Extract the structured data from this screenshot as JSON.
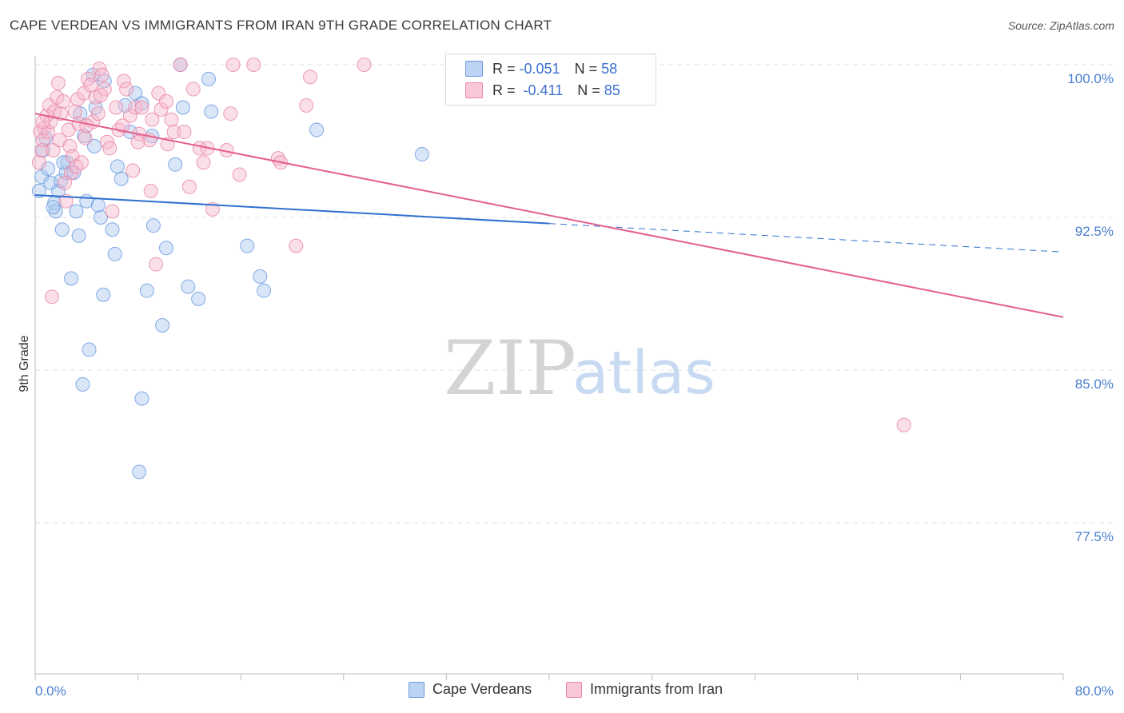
{
  "title": "CAPE VERDEAN VS IMMIGRANTS FROM IRAN 9TH GRADE CORRELATION CHART",
  "source": "Source: ZipAtlas.com",
  "watermark": {
    "zip": "ZIP",
    "atlas": "atlas"
  },
  "legend": {
    "blue": {
      "r_label": "R =",
      "r_value": "-0.051",
      "n_label": "N =",
      "n_value": "58"
    },
    "pink": {
      "r_label": "R =",
      "r_value": "-0.411",
      "n_label": "N =",
      "n_value": "85"
    }
  },
  "bottom_legend": {
    "blue": "Cape Verdeans",
    "pink": "Immigrants from Iran"
  },
  "colors": {
    "blue_fill": "#a9c7f0",
    "blue_stroke": "#6e9ce0",
    "blue_line": "#2f6fd0",
    "pink_fill": "#f6b8cc",
    "pink_stroke": "#e98aaa",
    "pink_line": "#e45f8d",
    "tick": "#4a7fcf"
  },
  "chart_data": {
    "type": "scatter",
    "title": "CAPE VERDEAN VS IMMIGRANTS FROM IRAN 9TH GRADE CORRELATION CHART",
    "xlabel": "",
    "ylabel": "9th Grade",
    "xlim": [
      0,
      80
    ],
    "ylim": [
      71,
      101.5
    ],
    "x_tick_labels": [
      "0.0%",
      "80.0%"
    ],
    "y_ticks": [
      77.5,
      85.0,
      92.5,
      100.0
    ],
    "y_tick_labels": [
      "77.5%",
      "85.0%",
      "92.5%",
      "100.0%"
    ],
    "series": [
      {
        "name": "Cape Verdeans",
        "trend": {
          "x0": 0,
          "y0": 93.6,
          "x1": 40,
          "y1": 92.2,
          "dash_to_x": 80,
          "dash_to_y": 90.8
        },
        "points": [
          [
            0.3,
            93.8
          ],
          [
            0.5,
            94.5
          ],
          [
            0.6,
            95.8
          ],
          [
            0.8,
            96.4
          ],
          [
            1.0,
            94.9
          ],
          [
            1.2,
            94.2
          ],
          [
            1.5,
            93.2
          ],
          [
            1.6,
            92.8
          ],
          [
            1.8,
            93.8
          ],
          [
            2.0,
            94.3
          ],
          [
            2.1,
            91.9
          ],
          [
            2.4,
            94.7
          ],
          [
            2.5,
            95.2
          ],
          [
            2.8,
            89.5
          ],
          [
            3.0,
            94.7
          ],
          [
            3.2,
            92.8
          ],
          [
            3.4,
            91.6
          ],
          [
            3.5,
            97.6
          ],
          [
            3.8,
            96.5
          ],
          [
            4.0,
            93.3
          ],
          [
            4.2,
            86.0
          ],
          [
            4.5,
            99.5
          ],
          [
            4.7,
            97.9
          ],
          [
            4.9,
            93.1
          ],
          [
            5.1,
            92.5
          ],
          [
            5.3,
            88.7
          ],
          [
            5.4,
            99.2
          ],
          [
            6.0,
            91.9
          ],
          [
            6.2,
            90.7
          ],
          [
            6.7,
            94.4
          ],
          [
            7.4,
            96.7
          ],
          [
            7.8,
            98.6
          ],
          [
            8.1,
            80.0
          ],
          [
            8.3,
            98.1
          ],
          [
            8.3,
            83.6
          ],
          [
            8.7,
            88.9
          ],
          [
            9.1,
            96.5
          ],
          [
            9.2,
            92.1
          ],
          [
            9.9,
            87.2
          ],
          [
            10.2,
            91.0
          ],
          [
            10.9,
            95.1
          ],
          [
            11.3,
            100.0
          ],
          [
            11.5,
            97.9
          ],
          [
            11.9,
            89.1
          ],
          [
            12.7,
            88.5
          ],
          [
            13.5,
            99.3
          ],
          [
            13.7,
            97.7
          ],
          [
            16.5,
            91.1
          ],
          [
            17.5,
            89.6
          ],
          [
            17.8,
            88.9
          ],
          [
            21.9,
            96.8
          ],
          [
            30.1,
            95.6
          ],
          [
            1.4,
            93.0
          ],
          [
            3.7,
            84.3
          ],
          [
            2.2,
            95.2
          ],
          [
            6.4,
            95.0
          ],
          [
            4.6,
            96.0
          ],
          [
            7.0,
            98.0
          ]
        ]
      },
      {
        "name": "Immigrants from Iran",
        "trend": {
          "x0": 0,
          "y0": 97.6,
          "x1": 80,
          "y1": 87.6
        },
        "points": [
          [
            0.3,
            95.2
          ],
          [
            0.4,
            96.7
          ],
          [
            0.5,
            95.8
          ],
          [
            0.6,
            96.3
          ],
          [
            0.7,
            96.9
          ],
          [
            0.9,
            97.5
          ],
          [
            1.0,
            96.7
          ],
          [
            1.1,
            98.0
          ],
          [
            1.2,
            97.2
          ],
          [
            1.3,
            88.6
          ],
          [
            1.4,
            95.8
          ],
          [
            1.5,
            97.7
          ],
          [
            1.7,
            98.4
          ],
          [
            1.9,
            96.3
          ],
          [
            2.0,
            97.6
          ],
          [
            2.2,
            98.2
          ],
          [
            2.4,
            93.3
          ],
          [
            2.6,
            96.8
          ],
          [
            2.7,
            96.0
          ],
          [
            2.8,
            94.7
          ],
          [
            2.9,
            95.5
          ],
          [
            3.1,
            97.7
          ],
          [
            3.3,
            98.3
          ],
          [
            3.4,
            97.1
          ],
          [
            3.6,
            95.2
          ],
          [
            3.8,
            98.6
          ],
          [
            3.9,
            96.4
          ],
          [
            4.1,
            99.3
          ],
          [
            4.3,
            99.0
          ],
          [
            4.5,
            97.2
          ],
          [
            4.7,
            98.4
          ],
          [
            4.9,
            97.6
          ],
          [
            5.0,
            99.8
          ],
          [
            5.2,
            99.5
          ],
          [
            5.4,
            98.8
          ],
          [
            5.6,
            96.2
          ],
          [
            5.8,
            95.9
          ],
          [
            6.0,
            92.8
          ],
          [
            6.3,
            97.9
          ],
          [
            6.5,
            96.8
          ],
          [
            6.9,
            99.2
          ],
          [
            7.1,
            98.8
          ],
          [
            7.4,
            97.5
          ],
          [
            7.6,
            94.8
          ],
          [
            7.8,
            97.9
          ],
          [
            8.1,
            96.6
          ],
          [
            8.3,
            97.9
          ],
          [
            8.9,
            96.3
          ],
          [
            9.1,
            97.3
          ],
          [
            9.4,
            90.2
          ],
          [
            9.6,
            98.6
          ],
          [
            9.8,
            97.8
          ],
          [
            10.2,
            98.2
          ],
          [
            10.3,
            96.1
          ],
          [
            10.6,
            97.3
          ],
          [
            10.8,
            96.7
          ],
          [
            11.3,
            100.0
          ],
          [
            11.6,
            96.7
          ],
          [
            12.3,
            98.8
          ],
          [
            12.8,
            95.9
          ],
          [
            13.1,
            95.2
          ],
          [
            13.4,
            95.9
          ],
          [
            13.8,
            92.9
          ],
          [
            14.9,
            95.8
          ],
          [
            15.2,
            97.6
          ],
          [
            15.4,
            100.0
          ],
          [
            15.9,
            94.6
          ],
          [
            17.0,
            100.0
          ],
          [
            18.9,
            95.4
          ],
          [
            19.1,
            95.2
          ],
          [
            21.1,
            98.0
          ],
          [
            21.4,
            99.4
          ],
          [
            25.6,
            100.0
          ],
          [
            67.6,
            82.3
          ],
          [
            20.3,
            91.1
          ],
          [
            8.0,
            96.2
          ],
          [
            4.0,
            97.0
          ],
          [
            2.3,
            94.2
          ],
          [
            3.2,
            95.0
          ],
          [
            6.8,
            97.0
          ],
          [
            1.8,
            99.1
          ],
          [
            0.6,
            97.2
          ],
          [
            5.1,
            98.5
          ],
          [
            9.0,
            93.8
          ],
          [
            12.0,
            94.0
          ]
        ]
      }
    ]
  }
}
